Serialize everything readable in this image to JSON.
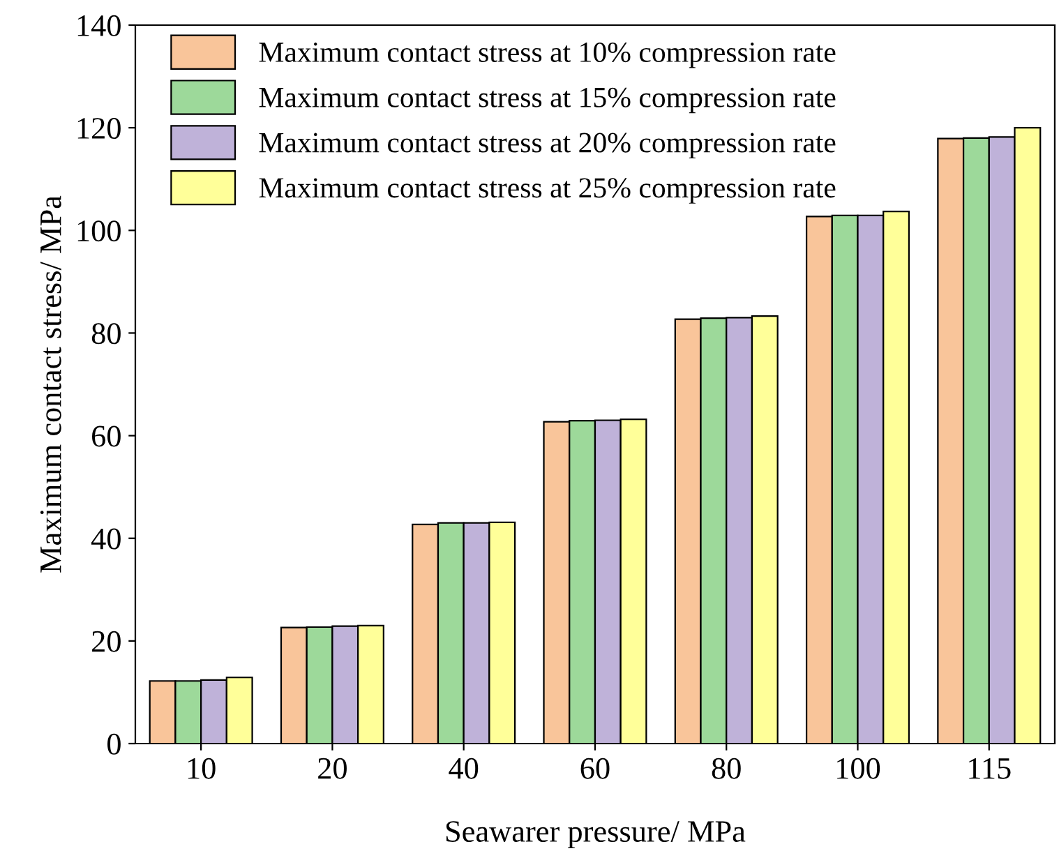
{
  "chart_data": {
    "type": "bar",
    "xlabel": "Seawarer pressure/ MPa",
    "ylabel": "Maximum contact stress/ MPa",
    "categories": [
      "10",
      "20",
      "40",
      "60",
      "80",
      "100",
      "115"
    ],
    "series": [
      {
        "name": "Maximum contact stress at 10% compression rate",
        "color": "#f9c59a",
        "values": [
          12.2,
          22.6,
          42.7,
          62.7,
          82.7,
          102.7,
          117.9
        ]
      },
      {
        "name": "Maximum contact stress at 15% compression rate",
        "color": "#9dd99a",
        "values": [
          12.2,
          22.7,
          43.0,
          62.9,
          82.9,
          102.9,
          118.0
        ]
      },
      {
        "name": "Maximum contact stress at 20% compression rate",
        "color": "#bfb2d9",
        "values": [
          12.4,
          22.9,
          43.0,
          63.0,
          83.0,
          102.9,
          118.2
        ]
      },
      {
        "name": "Maximum contact stress at 25% compression rate",
        "color": "#ffff99",
        "values": [
          12.9,
          23.0,
          43.1,
          63.2,
          83.3,
          103.7,
          120.0
        ]
      }
    ],
    "ylim": [
      0,
      140
    ],
    "yticks": [
      0,
      20,
      40,
      60,
      80,
      100,
      120,
      140
    ],
    "grid": false,
    "legend": "top left"
  }
}
